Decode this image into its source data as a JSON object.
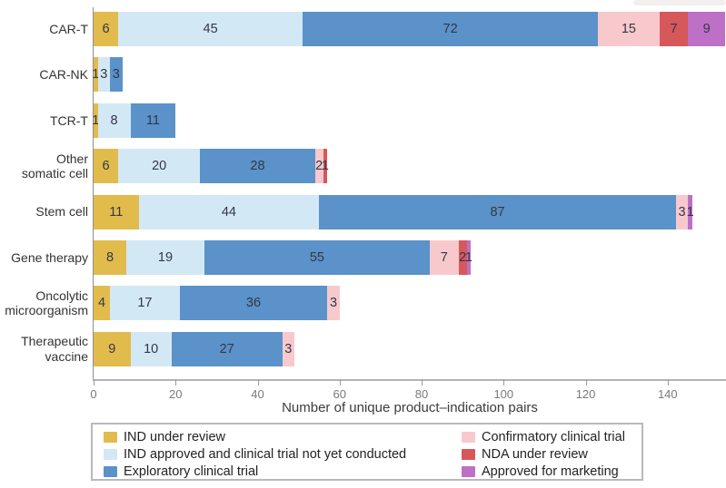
{
  "chart_data": {
    "type": "bar",
    "orientation": "horizontal",
    "xlabel": "Number of unique product–indication pairs",
    "categories": [
      "CAR-T",
      "CAR-NK",
      "TCR-T",
      "Other\nsomatic cell",
      "Stem cell",
      "Gene therapy",
      "Oncolytic\nmicroorganism",
      "Therapeutic\nvaccine"
    ],
    "series": [
      {
        "name": "IND under review",
        "color": "#e2bb4d",
        "values": [
          6,
          1,
          1,
          6,
          11,
          8,
          4,
          9
        ]
      },
      {
        "name": "IND approved and clinical trial not yet conducted",
        "color": "#d3e8f5",
        "values": [
          45,
          3,
          8,
          20,
          44,
          19,
          17,
          10
        ]
      },
      {
        "name": "Exploratory clinical trial",
        "color": "#5a92c9",
        "values": [
          72,
          3,
          11,
          28,
          87,
          55,
          36,
          27
        ]
      },
      {
        "name": "Confirmatory clinical trial",
        "color": "#f8c9cc",
        "values": [
          15,
          0,
          0,
          2,
          3,
          7,
          3,
          3
        ]
      },
      {
        "name": "NDA under review",
        "color": "#d6585b",
        "values": [
          7,
          0,
          0,
          1,
          0,
          2,
          0,
          0
        ]
      },
      {
        "name": "Approved for marketing",
        "color": "#bd70c6",
        "values": [
          9,
          0,
          0,
          0,
          1,
          1,
          0,
          0
        ]
      }
    ],
    "xticks": [
      0,
      20,
      40,
      60,
      80,
      100,
      120,
      140
    ],
    "xlim": [
      0,
      154
    ],
    "grid": false,
    "legend_position": "bottom",
    "value_labels": true
  },
  "legend": {
    "columns": [
      [
        {
          "label": "IND under review",
          "color": "#e2bb4d"
        },
        {
          "label": "IND approved and clinical trial not yet conducted",
          "color": "#d3e8f5"
        },
        {
          "label": "Exploratory clinical trial",
          "color": "#5a92c9"
        }
      ],
      [
        {
          "label": "Confirmatory clinical trial",
          "color": "#f8c9cc"
        },
        {
          "label": "NDA under review",
          "color": "#d6585b"
        },
        {
          "label": "Approved for marketing",
          "color": "#bd70c6"
        }
      ]
    ]
  }
}
